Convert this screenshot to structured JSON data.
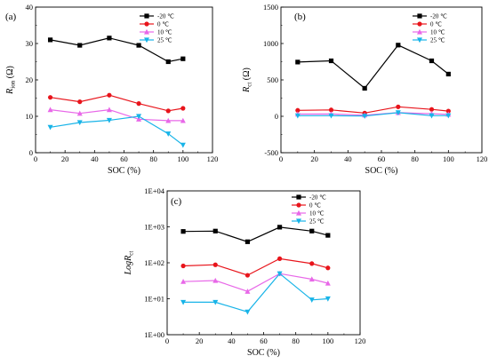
{
  "figure": {
    "legend_entries": [
      {
        "label": "-20 ℃",
        "color": "#000000",
        "marker": "square"
      },
      {
        "label": "0 ℃",
        "color": "#e8141b",
        "marker": "circle"
      },
      {
        "label": "10 ℃",
        "color": "#e868e8",
        "marker": "triangle-up"
      },
      {
        "label": "25 ℃",
        "color": "#18b4e8",
        "marker": "triangle-down"
      }
    ]
  },
  "chart_data": [
    {
      "panel_label": "(a)",
      "type": "line",
      "xlabel": "SOC (%)",
      "ylabel": {
        "main": "R",
        "sub": "ion",
        "unit": " (Ω)"
      },
      "xlim": [
        0,
        120
      ],
      "ylim": [
        0,
        40
      ],
      "xticks": [
        0,
        20,
        40,
        60,
        80,
        100,
        120
      ],
      "yticks": [
        0,
        10,
        20,
        30,
        40
      ],
      "scale": "linear",
      "x": [
        10,
        30,
        50,
        70,
        90,
        100
      ],
      "legend_position": "top-right",
      "series": [
        {
          "name": "-20 ℃",
          "values": [
            31.0,
            29.5,
            31.5,
            29.5,
            25.0,
            25.8
          ]
        },
        {
          "name": "0 ℃",
          "values": [
            15.2,
            14.0,
            15.8,
            13.5,
            11.5,
            12.2
          ]
        },
        {
          "name": "10 ℃",
          "values": [
            11.8,
            10.8,
            11.8,
            9.2,
            8.8,
            8.8
          ]
        },
        {
          "name": "25 ℃",
          "values": [
            7.0,
            8.3,
            8.9,
            10.0,
            5.2,
            2.1
          ]
        }
      ]
    },
    {
      "panel_label": "(b)",
      "type": "line",
      "xlabel": "SOC (%)",
      "ylabel": {
        "main": "R",
        "sub": "ct",
        "unit": " (Ω)"
      },
      "xlim": [
        0,
        120
      ],
      "ylim": [
        -500,
        1500
      ],
      "xticks": [
        0,
        20,
        40,
        60,
        80,
        100,
        120
      ],
      "yticks": [
        -500,
        0,
        500,
        1000,
        1500
      ],
      "scale": "linear",
      "x": [
        10,
        30,
        50,
        70,
        90,
        100
      ],
      "legend_position": "top-right",
      "series": [
        {
          "name": "-20 ℃",
          "values": [
            745,
            762,
            385,
            978,
            762,
            580
          ]
        },
        {
          "name": "0 ℃",
          "values": [
            82,
            88,
            45,
            130,
            95,
            72
          ]
        },
        {
          "name": "10 ℃",
          "values": [
            30,
            32,
            16,
            50,
            35,
            27
          ]
        },
        {
          "name": "25 ℃",
          "values": [
            8,
            8,
            4,
            50,
            9,
            10
          ]
        }
      ]
    },
    {
      "panel_label": "(c)",
      "type": "line",
      "xlabel": "SOC (%)",
      "ylabel": {
        "main": "LogR",
        "sub": "ct",
        "unit": ""
      },
      "xlim": [
        0,
        120
      ],
      "ylim": [
        1,
        10000
      ],
      "xticks": [
        0,
        20,
        40,
        60,
        80,
        100,
        120
      ],
      "yticks": [
        1,
        10,
        100,
        1000,
        10000
      ],
      "ytick_labels": [
        "1E+00",
        "1E+01",
        "1E+02",
        "1E+03",
        "1E+04"
      ],
      "scale": "log",
      "x": [
        10,
        30,
        50,
        70,
        90,
        100
      ],
      "legend_position": "top-right",
      "series": [
        {
          "name": "-20 ℃",
          "values": [
            745,
            762,
            385,
            978,
            762,
            580
          ]
        },
        {
          "name": "0 ℃",
          "values": [
            82,
            88,
            45,
            130,
            95,
            72
          ]
        },
        {
          "name": "10 ℃",
          "values": [
            30,
            32,
            16,
            50,
            35,
            27
          ]
        },
        {
          "name": "25 ℃",
          "values": [
            8,
            8,
            4.3,
            50,
            9.3,
            10
          ]
        }
      ]
    }
  ]
}
